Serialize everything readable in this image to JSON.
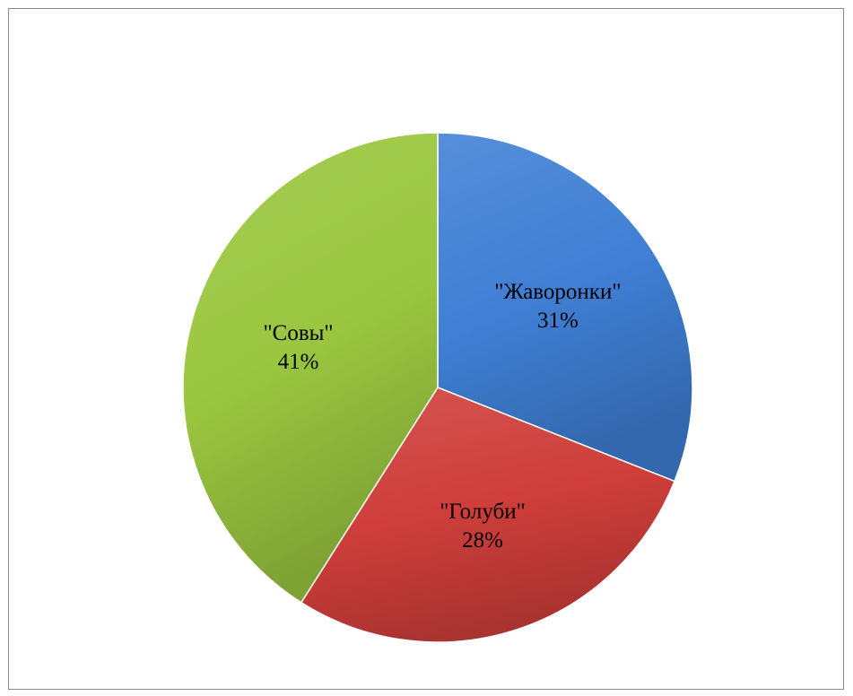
{
  "chart_data": {
    "type": "pie",
    "title": "",
    "slices": [
      {
        "label": "\"Жаворонки\"",
        "value": 31,
        "percent_label": "31%",
        "color": "#3f7fd4"
      },
      {
        "label": "\"Голуби\"",
        "value": 28,
        "percent_label": "28%",
        "color": "#cf3e3a"
      },
      {
        "label": "\"Совы\"",
        "value": 41,
        "percent_label": "41%",
        "color": "#9ac63f"
      }
    ],
    "start_angle": "12 o'clock",
    "direction": "clockwise",
    "legend": "none",
    "style": "3D gradient shading"
  }
}
